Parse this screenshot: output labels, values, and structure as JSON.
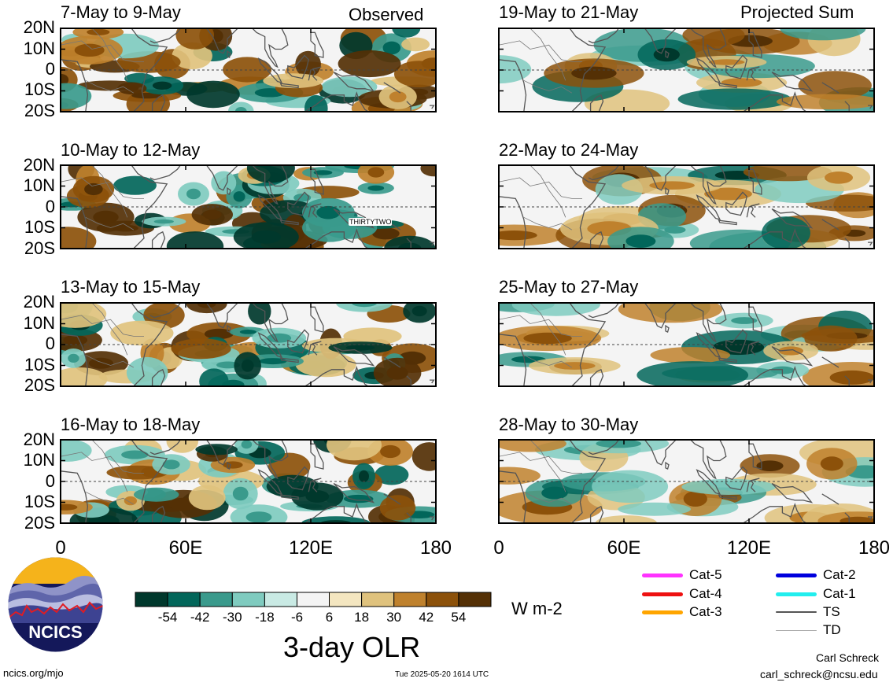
{
  "observed_label": "Observed",
  "projected_label": "Projected Sum",
  "chart_data": {
    "type": "heatmap",
    "title": "3-day OLR",
    "units": "W m-2",
    "lon_ticks": [
      "0",
      "60E",
      "120E",
      "180"
    ],
    "lat_ticks": [
      "20N",
      "10N",
      "0",
      "10S",
      "20S"
    ],
    "lon_range": [
      0,
      180
    ],
    "lat_range": [
      -20,
      20
    ],
    "observed_panels": [
      "7-May to 9-May",
      "10-May to 12-May",
      "13-May to 15-May",
      "16-May to 18-May"
    ],
    "projected_panels": [
      "19-May to 21-May",
      "22-May to 24-May",
      "25-May to 27-May",
      "28-May to 30-May"
    ],
    "annotation": "THIRTYTWO",
    "colorbar": {
      "levels": [
        "-54",
        "-42",
        "-30",
        "-18",
        "-6",
        "6",
        "18",
        "30",
        "42",
        "54"
      ],
      "colors": [
        "#00382c",
        "#02665a",
        "#3a9a8c",
        "#7fcbbf",
        "#c9eae4",
        "#f4f4f4",
        "#f4e6c0",
        "#dfc27d",
        "#bf812d",
        "#8c510a",
        "#543005"
      ]
    },
    "legend": [
      {
        "label": "Cat-5",
        "color": "#ff33ff"
      },
      {
        "label": "Cat-4",
        "color": "#ee1111"
      },
      {
        "label": "Cat-3",
        "color": "#ffa500"
      },
      {
        "label": "Cat-2",
        "color": "#0000dd"
      },
      {
        "label": "Cat-1",
        "color": "#22eeee"
      },
      {
        "label": "TS",
        "color": "#555555"
      },
      {
        "label": "TD",
        "color": "#aaaaaa"
      }
    ]
  },
  "logo_text": "NCICS",
  "footer": {
    "left": "ncics.org/mjo",
    "center": "Tue 2025-05-20 1614 UTC",
    "author": "Carl Schreck",
    "email": "carl_schreck@ncsu.edu"
  }
}
